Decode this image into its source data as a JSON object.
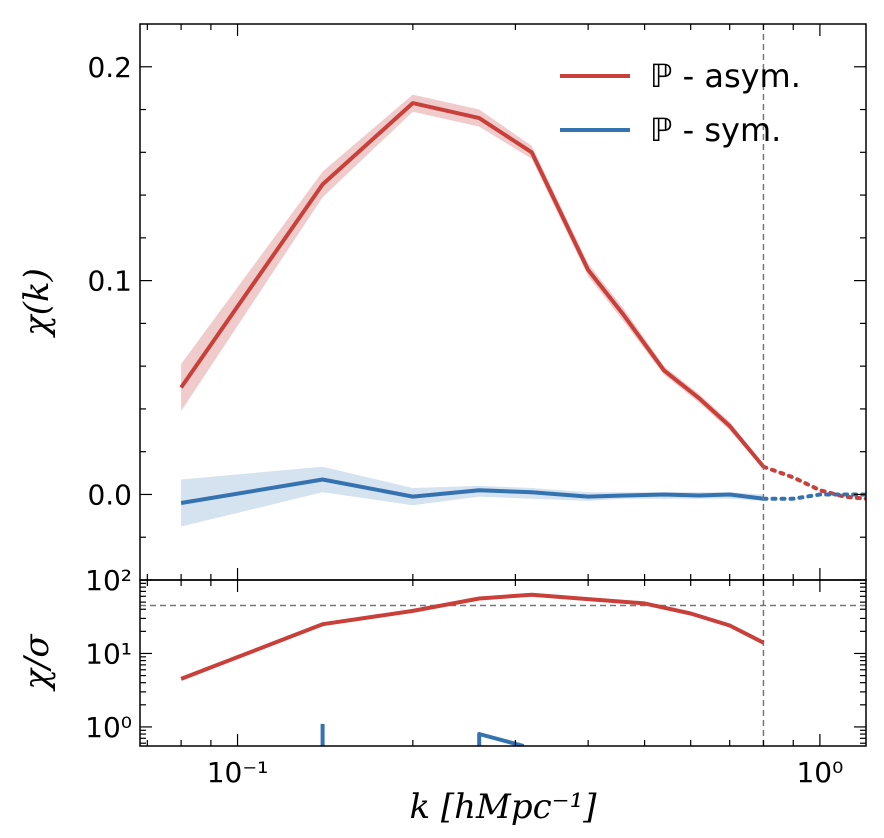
{
  "chart_data": [
    {
      "panel": "top",
      "type": "line",
      "xscale": "log",
      "xlim": [
        0.068,
        1.2
      ],
      "ylim": [
        -0.04,
        0.22
      ],
      "ylabel": "χ(k)",
      "yticks": [
        0.0,
        0.1,
        0.2
      ],
      "ytick_labels": [
        "0.0",
        "0.1",
        "0.2"
      ],
      "cutoff_k": 0.8,
      "legend": {
        "position": "top-right",
        "entries": [
          "ℙ - asym.",
          "ℙ - sym."
        ]
      },
      "series": [
        {
          "name": "ℙ - asym.",
          "color": "#c9403a",
          "band_color": "#efcccb",
          "x": [
            0.08,
            0.14,
            0.2,
            0.26,
            0.32,
            0.4,
            0.46,
            0.54,
            0.62,
            0.7,
            0.8
          ],
          "y": [
            0.05,
            0.145,
            0.183,
            0.176,
            0.16,
            0.105,
            0.084,
            0.058,
            0.045,
            0.032,
            0.013
          ],
          "band_lo": [
            0.039,
            0.139,
            0.179,
            0.172,
            0.157,
            0.102,
            0.081,
            0.056,
            0.043,
            0.03,
            0.012
          ],
          "band_hi": [
            0.061,
            0.151,
            0.187,
            0.18,
            0.163,
            0.108,
            0.087,
            0.06,
            0.047,
            0.034,
            0.014
          ],
          "extension_x": [
            0.8,
            0.9,
            1.0,
            1.1,
            1.2
          ],
          "extension_y": [
            0.013,
            0.008,
            0.002,
            -0.001,
            -0.002
          ]
        },
        {
          "name": "ℙ - sym.",
          "color": "#3572b0",
          "band_color": "#d5e2ef",
          "x": [
            0.08,
            0.14,
            0.2,
            0.26,
            0.32,
            0.4,
            0.46,
            0.54,
            0.62,
            0.7,
            0.8
          ],
          "y": [
            -0.004,
            0.007,
            -0.001,
            0.002,
            0.001,
            -0.001,
            -0.0005,
            0.0,
            -0.0005,
            0.0,
            -0.002
          ],
          "band_lo": [
            -0.015,
            0.001,
            -0.005,
            -0.001,
            -0.002,
            -0.003,
            -0.002,
            -0.002,
            -0.002,
            -0.002,
            -0.003
          ],
          "band_hi": [
            0.007,
            0.013,
            0.003,
            0.004,
            0.003,
            0.001,
            0.001,
            0.001,
            0.001,
            0.001,
            0.0
          ],
          "extension_x": [
            0.8,
            0.9,
            1.0,
            1.1,
            1.2
          ],
          "extension_y": [
            -0.002,
            -0.002,
            0.0,
            0.0,
            0.0
          ]
        }
      ]
    },
    {
      "panel": "bottom",
      "type": "line",
      "xscale": "log",
      "yscale": "log",
      "xlim": [
        0.068,
        1.2
      ],
      "ylim": [
        0.55,
        100
      ],
      "xlabel": "k [hMpc⁻¹]",
      "ylabel": "χ/σ",
      "xticks": [
        0.1,
        1.0
      ],
      "xtick_labels": [
        "10⁻¹",
        "10⁰"
      ],
      "yticks": [
        1,
        10,
        100
      ],
      "ytick_labels": [
        "10⁰",
        "10¹",
        "10²"
      ],
      "hline": 45,
      "cutoff_k": 0.8,
      "series": [
        {
          "name": "ℙ - asym.",
          "color": "#c9403a",
          "x": [
            0.08,
            0.14,
            0.2,
            0.26,
            0.32,
            0.4,
            0.5,
            0.6,
            0.7,
            0.8
          ],
          "y": [
            4.5,
            25,
            38,
            56,
            63,
            55,
            48,
            35,
            24,
            14
          ]
        },
        {
          "name": "ℙ - sym.",
          "color": "#3572b0",
          "x": [
            0.14,
            0.14
          ],
          "y": [
            0.55,
            1.1
          ]
        },
        {
          "name": "ℙ - sym.",
          "color": "#3572b0",
          "x": [
            0.26,
            0.26,
            0.31
          ],
          "y": [
            0.55,
            0.8,
            0.55
          ]
        }
      ]
    }
  ]
}
